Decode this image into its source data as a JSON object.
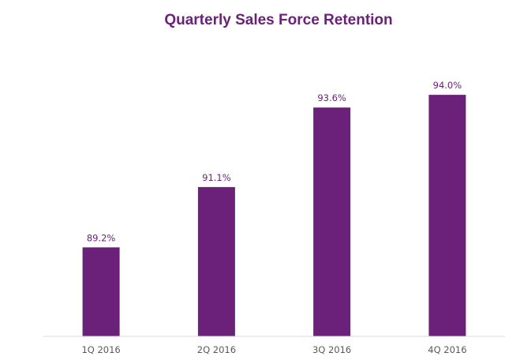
{
  "chart_data": {
    "type": "bar",
    "title": "Quarterly Sales Force Retention",
    "categories": [
      "1Q 2016",
      "2Q 2016",
      "3Q 2016",
      "4Q 2016"
    ],
    "values": [
      89.2,
      91.1,
      93.6,
      94.0
    ],
    "data_labels": [
      "89.2%",
      "91.1%",
      "93.6%",
      "94.0%"
    ],
    "xlabel": "",
    "ylabel": "",
    "ylim": [
      86.4,
      94.6
    ],
    "grid": false,
    "legend": "none"
  },
  "colors": {
    "bar": "#6b2179",
    "title": "#6b2179",
    "data_label": "#6b2179",
    "tick_label": "#595959",
    "axis": "#d9d9d9"
  }
}
